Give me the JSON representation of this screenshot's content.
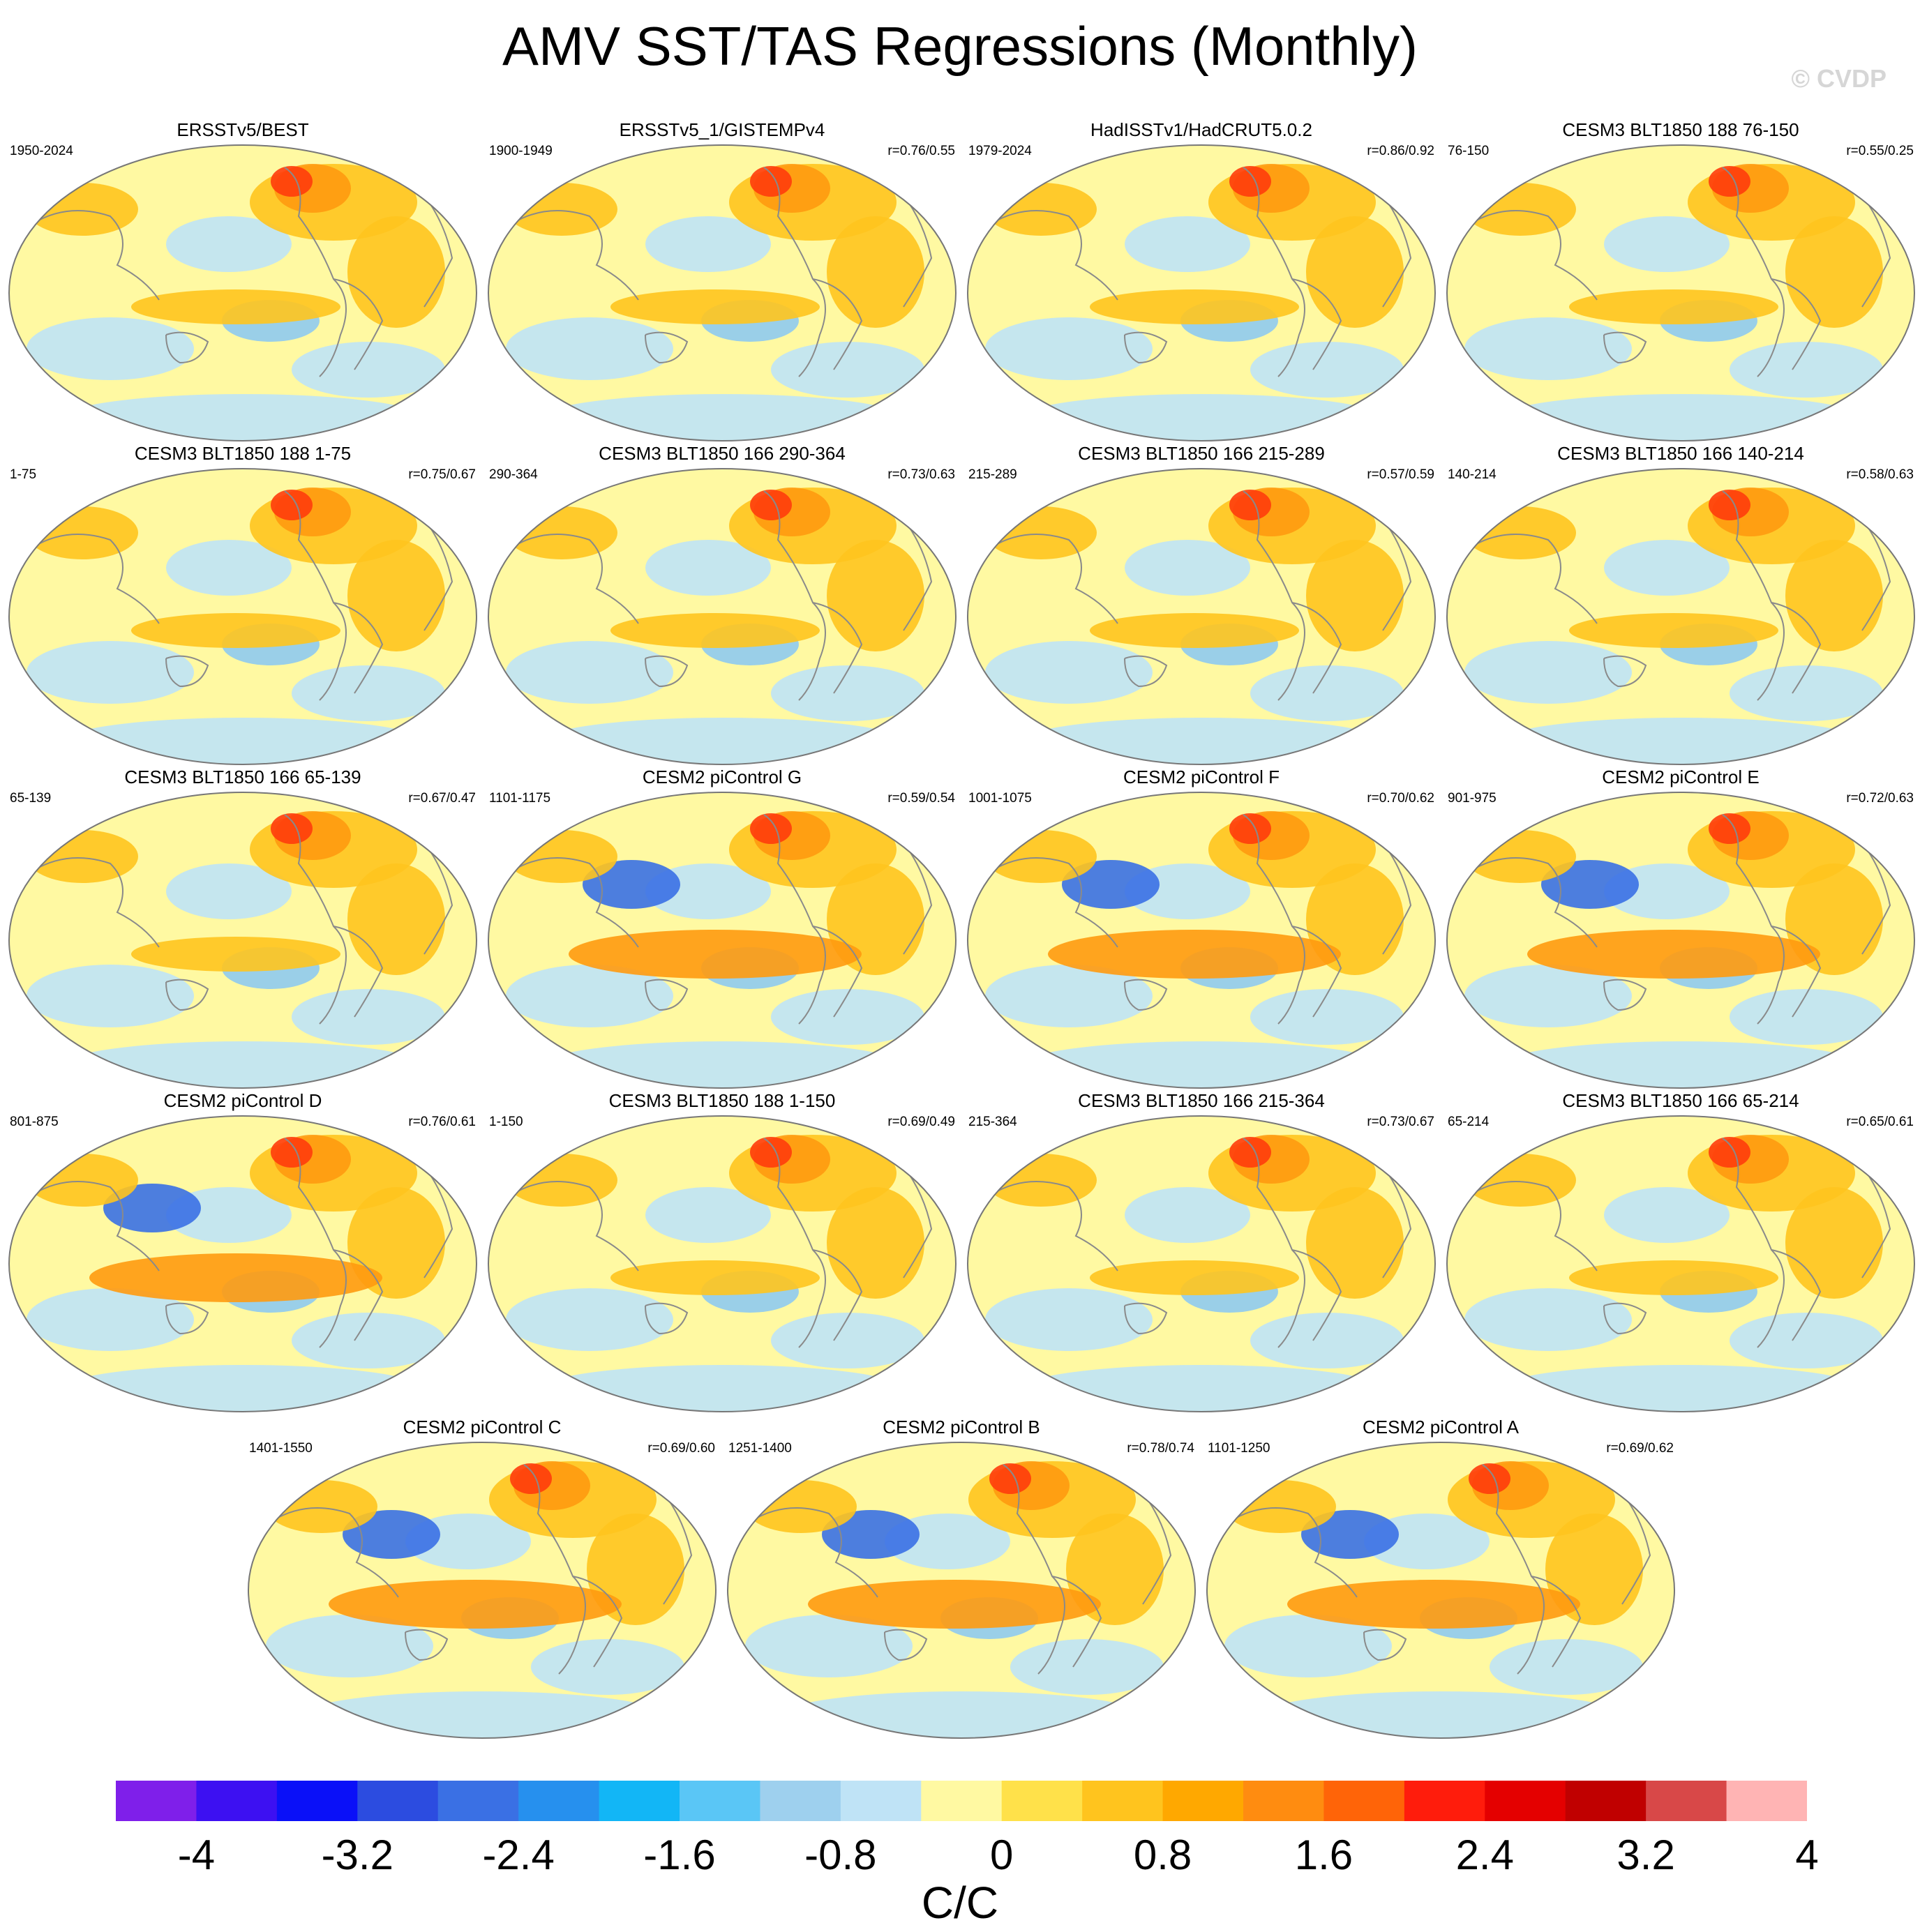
{
  "title": "AMV SST/TAS Regressions (Monthly)",
  "watermark": "© CVDP",
  "panels": [
    {
      "title": "ERSSTv5/BEST",
      "period": "1950-2024",
      "corr": ""
    },
    {
      "title": "ERSSTv5_1/GISTEMPv4",
      "period": "1900-1949",
      "corr": "r=0.76/0.55"
    },
    {
      "title": "HadISSTv1/HadCRUT5.0.2",
      "period": "1979-2024",
      "corr": "r=0.86/0.92"
    },
    {
      "title": "CESM3 BLT1850 188 76-150",
      "period": "76-150",
      "corr": "r=0.55/0.25"
    },
    {
      "title": "CESM3 BLT1850 188 1-75",
      "period": "1-75",
      "corr": "r=0.75/0.67"
    },
    {
      "title": "CESM3 BLT1850 166 290-364",
      "period": "290-364",
      "corr": "r=0.73/0.63"
    },
    {
      "title": "CESM3 BLT1850 166 215-289",
      "period": "215-289",
      "corr": "r=0.57/0.59"
    },
    {
      "title": "CESM3 BLT1850 166 140-214",
      "period": "140-214",
      "corr": "r=0.58/0.63"
    },
    {
      "title": "CESM3 BLT1850 166 65-139",
      "period": "65-139",
      "corr": "r=0.67/0.47"
    },
    {
      "title": "CESM2 piControl G",
      "period": "1101-1175",
      "corr": "r=0.59/0.54"
    },
    {
      "title": "CESM2 piControl F",
      "period": "1001-1075",
      "corr": "r=0.70/0.62"
    },
    {
      "title": "CESM2 piControl E",
      "period": "901-975",
      "corr": "r=0.72/0.63"
    },
    {
      "title": "CESM2 piControl D",
      "period": "801-875",
      "corr": "r=0.76/0.61"
    },
    {
      "title": "CESM3 BLT1850 188 1-150",
      "period": "1-150",
      "corr": "r=0.69/0.49"
    },
    {
      "title": "CESM3 BLT1850 166 215-364",
      "period": "215-364",
      "corr": "r=0.73/0.67"
    },
    {
      "title": "CESM3 BLT1850 166 65-214",
      "period": "65-214",
      "corr": "r=0.65/0.61"
    },
    {
      "title": "CESM2 piControl C",
      "period": "1401-1550",
      "corr": "r=0.69/0.60"
    },
    {
      "title": "CESM2 piControl B",
      "period": "1251-1400",
      "corr": "r=0.78/0.74"
    },
    {
      "title": "CESM2 piControl A",
      "period": "1101-1250",
      "corr": "r=0.69/0.62"
    }
  ],
  "colorbar": {
    "colors": [
      "#7f1fea",
      "#3d10f2",
      "#0a10f8",
      "#2c4ce0",
      "#3a70e4",
      "#2690ee",
      "#12b6f6",
      "#5ac6f6",
      "#9ed0ee",
      "#bfe3f6",
      "#fff9a2",
      "#ffe14a",
      "#ffc41e",
      "#ffa800",
      "#ff8c10",
      "#ff6408",
      "#ff1c0c",
      "#e40000",
      "#c00000",
      "#d84848",
      "#ffb4b4"
    ],
    "ticks": [
      "-4",
      "-3.2",
      "-2.4",
      "-1.6",
      "-0.8",
      "0",
      "0.8",
      "1.6",
      "2.4",
      "3.2",
      "4"
    ],
    "units": "C/C"
  },
  "palette": {
    "land": "#ffffff",
    "coast": "#8a8a8a",
    "bg": "#fff9a2",
    "cool": "#bfe3f6",
    "cool2": "#8fcaf0",
    "warm": "#ffc41e",
    "warm2": "#ff9a10",
    "hot": "#ff3c0c",
    "cold": "#3a70e4"
  }
}
